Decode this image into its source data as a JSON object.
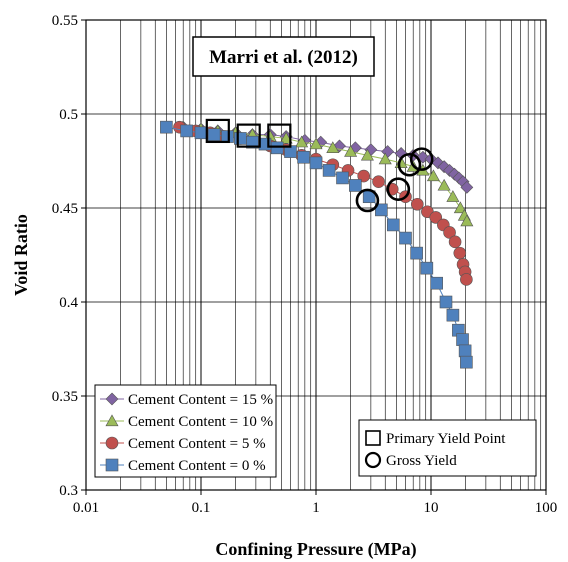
{
  "chart_data": {
    "type": "scatter",
    "title": "Marri et al. (2012)",
    "xlabel": "Confining Pressure (MPa)",
    "ylabel": "Void Ratio",
    "xscale": "log",
    "xlim": [
      0.01,
      100
    ],
    "ylim": [
      0.3,
      0.55
    ],
    "grid": true,
    "x_ticks": [
      0.01,
      0.1,
      1,
      10,
      100
    ],
    "x_tick_labels": [
      "0.01",
      "0.1",
      "1",
      "10",
      "100"
    ],
    "y_ticks": [
      0.3,
      0.35,
      0.4,
      0.45,
      0.5,
      0.55
    ],
    "y_tick_labels": [
      "0.3",
      "0.35",
      "0.4",
      "0.45",
      "0.5",
      "0.55"
    ],
    "series": [
      {
        "name": "Cement Content = 15 %",
        "marker": "diamond",
        "color": "#8064a2",
        "x": [
          0.07,
          0.1,
          0.14,
          0.2,
          0.28,
          0.4,
          0.55,
          0.8,
          1.1,
          1.6,
          2.2,
          3.0,
          4.2,
          5.5,
          7.0,
          8.5,
          10.0,
          11.5,
          13.0,
          14.5,
          16.0,
          17.5,
          19.0,
          20.5
        ],
        "y": [
          0.493,
          0.492,
          0.491,
          0.49,
          0.489,
          0.489,
          0.488,
          0.486,
          0.485,
          0.483,
          0.482,
          0.481,
          0.48,
          0.479,
          0.478,
          0.477,
          0.476,
          0.474,
          0.472,
          0.47,
          0.468,
          0.466,
          0.464,
          0.461
        ]
      },
      {
        "name": "Cement Content = 10 %",
        "marker": "triangle",
        "color": "#9bbb59",
        "x": [
          0.07,
          0.1,
          0.14,
          0.2,
          0.28,
          0.4,
          0.55,
          0.75,
          1.0,
          1.4,
          2.0,
          2.8,
          4.0,
          5.5,
          7.0,
          8.5,
          10.5,
          13.0,
          15.5,
          18.0,
          19.5,
          20.5
        ],
        "y": [
          0.493,
          0.492,
          0.491,
          0.49,
          0.489,
          0.488,
          0.487,
          0.485,
          0.484,
          0.482,
          0.48,
          0.478,
          0.476,
          0.474,
          0.472,
          0.47,
          0.467,
          0.462,
          0.456,
          0.45,
          0.446,
          0.443
        ]
      },
      {
        "name": "Cement Content = 5 %",
        "marker": "circle",
        "color": "#c0504d",
        "x": [
          0.065,
          0.09,
          0.12,
          0.16,
          0.22,
          0.3,
          0.4,
          0.55,
          0.75,
          1.0,
          1.4,
          1.9,
          2.6,
          3.5,
          4.6,
          6.0,
          7.6,
          9.3,
          11.0,
          12.8,
          14.5,
          16.2,
          17.8,
          19.0,
          19.8,
          20.3
        ],
        "y": [
          0.493,
          0.491,
          0.49,
          0.488,
          0.487,
          0.485,
          0.483,
          0.481,
          0.478,
          0.476,
          0.473,
          0.47,
          0.467,
          0.464,
          0.46,
          0.456,
          0.452,
          0.448,
          0.445,
          0.441,
          0.437,
          0.432,
          0.426,
          0.42,
          0.416,
          0.412
        ]
      },
      {
        "name": "Cement Content = 0 %",
        "marker": "square",
        "color": "#4f81bd",
        "x": [
          0.05,
          0.075,
          0.1,
          0.13,
          0.17,
          0.22,
          0.28,
          0.36,
          0.46,
          0.6,
          0.78,
          1.0,
          1.3,
          1.7,
          2.2,
          2.9,
          3.7,
          4.7,
          6.0,
          7.5,
          9.2,
          11.2,
          13.5,
          15.5,
          17.3,
          18.8,
          19.8,
          20.3
        ],
        "y": [
          0.493,
          0.491,
          0.49,
          0.489,
          0.488,
          0.487,
          0.485,
          0.484,
          0.482,
          0.48,
          0.477,
          0.474,
          0.47,
          0.466,
          0.462,
          0.456,
          0.449,
          0.441,
          0.434,
          0.426,
          0.418,
          0.41,
          0.4,
          0.393,
          0.385,
          0.38,
          0.374,
          0.368
        ]
      }
    ],
    "annotation_series": [
      {
        "name": "Primary Yield Point",
        "marker": "open-square",
        "x": [
          0.14,
          0.26,
          0.48
        ],
        "y": [
          0.491,
          0.4885,
          0.4885
        ]
      },
      {
        "name": "Gross Yield",
        "marker": "open-circle",
        "x": [
          2.8,
          5.2,
          6.5,
          8.3
        ],
        "y": [
          0.454,
          0.46,
          0.473,
          0.476
        ]
      }
    ],
    "legend_position": "bottom-left",
    "annotation_legend_position": "bottom-right"
  }
}
